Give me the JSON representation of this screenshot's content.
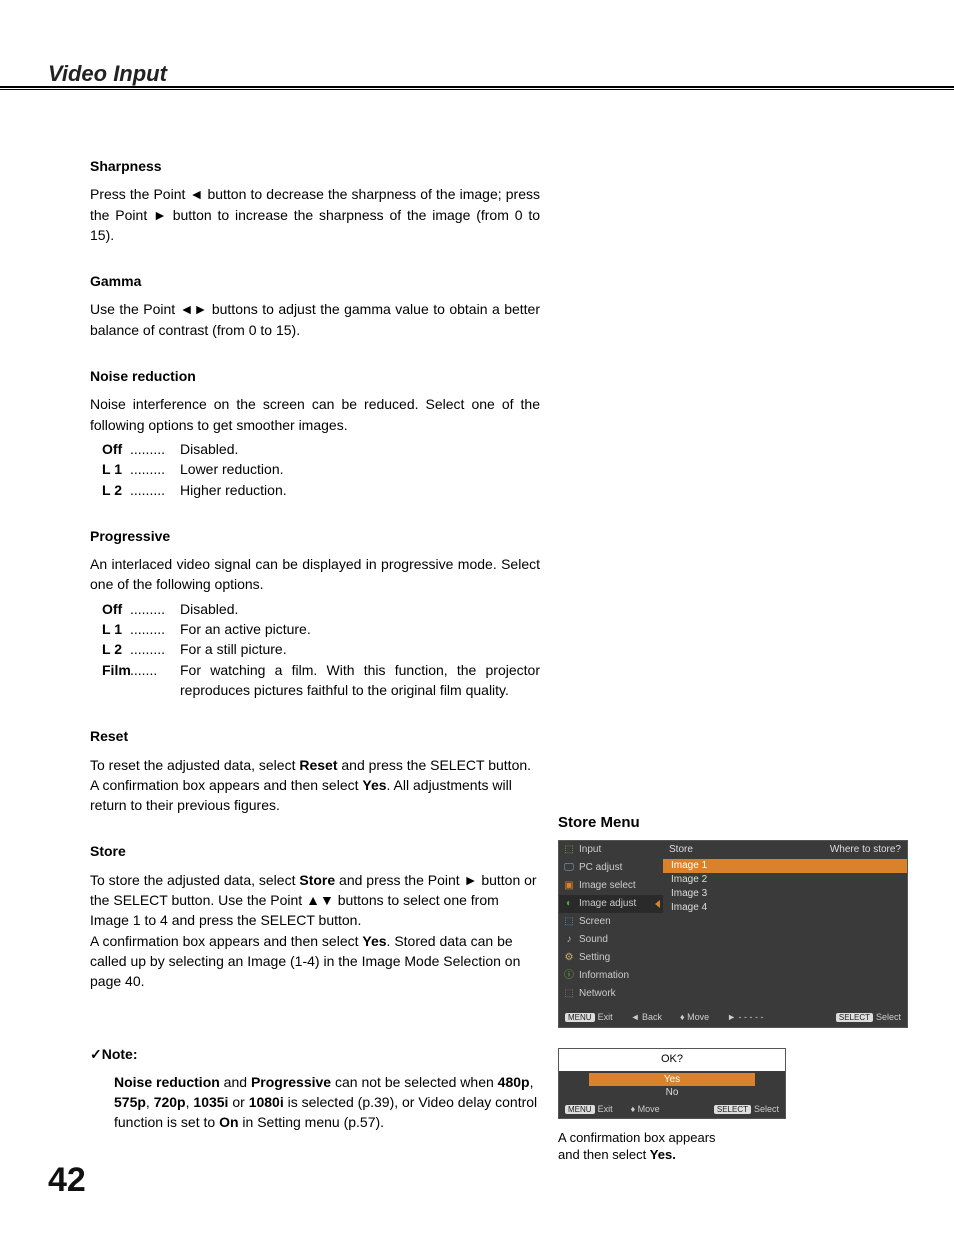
{
  "page": {
    "title": "Video Input",
    "number": "42"
  },
  "sections": {
    "sharpness": {
      "head": "Sharpness",
      "body": "Press the Point ◄ button to decrease the sharpness of the image; press the Point ► button to increase the sharpness of the image (from 0 to 15)."
    },
    "gamma": {
      "head": "Gamma",
      "body": "Use the Point ◄► buttons to adjust the gamma value to obtain a better balance of contrast (from 0 to 15)."
    },
    "noise": {
      "head": "Noise reduction",
      "body": "Noise interference on the screen can be reduced. Select one of the following options to get smoother images.",
      "opts": [
        {
          "label": "Off",
          "dots": ".........",
          "desc": "Disabled."
        },
        {
          "label": "L 1",
          "dots": ".........",
          "desc": "Lower reduction."
        },
        {
          "label": "L 2",
          "dots": ".........",
          "desc": "Higher reduction."
        }
      ]
    },
    "progressive": {
      "head": "Progressive",
      "body": "An interlaced video signal can be displayed in progressive mode. Select one of the following options.",
      "opts": [
        {
          "label": "Off",
          "dots": ".........",
          "desc": "Disabled."
        },
        {
          "label": "L 1",
          "dots": ".........",
          "desc": "For an active picture."
        },
        {
          "label": "L 2",
          "dots": ".........",
          "desc": "For a still picture."
        },
        {
          "label": "Film",
          "dots": ".......",
          "desc": "For watching a film. With this function, the projector reproduces pictures faithful to the original film quality."
        }
      ]
    },
    "reset": {
      "head": "Reset",
      "body_parts": [
        "To reset the adjusted data, select ",
        "Reset",
        " and press the SELECT button. A confirmation box appears and then select ",
        "Yes",
        ". All adjustments will return to their previous figures."
      ]
    },
    "store": {
      "head": "Store",
      "body_parts": [
        "To store the adjusted data, select ",
        "Store",
        " and press the Point ► button or the SELECT button. Use the Point ▲▼ buttons to select one from Image 1 to 4 and press the SELECT button.",
        "A confirmation box appears and then select ",
        "Yes",
        ". Stored data can be called up by selecting an Image (1-4) in the Image Mode Selection on page 40."
      ]
    },
    "note": {
      "head": "✓Note:",
      "parts": [
        "Noise reduction",
        " and ",
        "Progressive",
        " can not be selected when ",
        "480p",
        ", ",
        "575p",
        ", ",
        "720p",
        ", ",
        "1035i",
        " or ",
        "1080i",
        " is selected (p.39), or Video delay control function is set to ",
        "On",
        " in Setting menu (p.57)."
      ]
    }
  },
  "storeMenu": {
    "title": "Store Menu",
    "header": {
      "left": "Store",
      "right": "Where to store?"
    },
    "side": [
      {
        "icon": "⬚",
        "iconColor": "#6fbf3f",
        "label": "Input"
      },
      {
        "icon": "🖵",
        "iconColor": "#9ab",
        "label": "PC adjust"
      },
      {
        "icon": "▣",
        "iconColor": "#d9822b",
        "label": "Image select"
      },
      {
        "icon": "◐",
        "iconColor": "#3fae4f",
        "label": "Image adjust",
        "selected": true
      },
      {
        "icon": "⬚",
        "iconColor": "#5aa0d0",
        "label": "Screen"
      },
      {
        "icon": "♪",
        "iconColor": "#bbb",
        "label": "Sound"
      },
      {
        "icon": "⚙",
        "iconColor": "#c9b06a",
        "label": "Setting"
      },
      {
        "icon": "ⓘ",
        "iconColor": "#6fbf3f",
        "label": "Information"
      },
      {
        "icon": "⬚",
        "iconColor": "#888",
        "label": "Network"
      }
    ],
    "images": [
      {
        "label": "Image 1",
        "selected": true
      },
      {
        "label": "Image 2"
      },
      {
        "label": "Image 3"
      },
      {
        "label": "Image 4"
      }
    ],
    "footer": {
      "exit": "Exit",
      "exitBadge": "MENU",
      "back": "◄ Back",
      "move": "♦ Move",
      "next": "► - - - - -",
      "select": "Select",
      "selectBadge": "SELECT"
    },
    "confirm": {
      "title": "OK?",
      "yes": "Yes",
      "no": "No",
      "footer": {
        "exitBadge": "MENU",
        "exit": "Exit",
        "move": "♦ Move",
        "selectBadge": "SELECT",
        "select": "Select"
      }
    },
    "caption": [
      "A confirmation box appears and then select ",
      "Yes."
    ]
  },
  "colors": {
    "accent": "#d9822b",
    "menuBg": "#3a3a3a"
  }
}
